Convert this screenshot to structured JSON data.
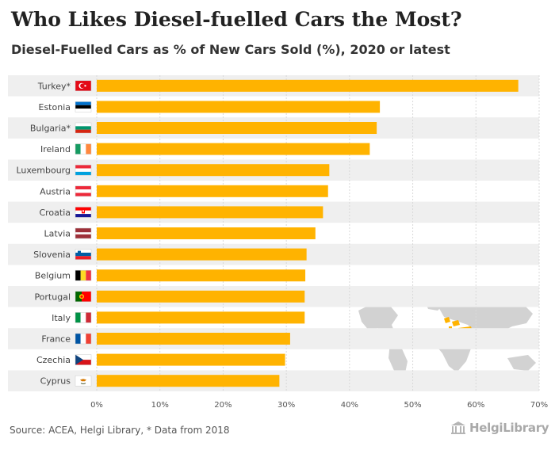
{
  "title": "Who Likes Diesel-fuelled Cars the Most?",
  "subtitle": "Diesel-Fuelled Cars as % of New Cars Sold (%), 2020 or latest",
  "source": "Source: ACEA, Helgi Library, * Data from 2018",
  "brand": "HelgiLibrary",
  "chart_data": {
    "type": "bar",
    "orientation": "horizontal",
    "categories": [
      "Turkey*",
      "Estonia",
      "Bulgaria*",
      "Ireland",
      "Luxembourg",
      "Austria",
      "Croatia",
      "Latvia",
      "Slovenia",
      "Belgium",
      "Portugal",
      "Italy",
      "France",
      "Czechia",
      "Cyprus"
    ],
    "values": [
      66.7,
      44.8,
      44.3,
      43.2,
      36.8,
      36.6,
      35.8,
      34.6,
      33.2,
      33.0,
      32.9,
      32.9,
      30.6,
      29.8,
      28.9
    ],
    "xlim": [
      0,
      70
    ],
    "ticks": [
      0,
      10,
      20,
      30,
      40,
      50,
      60,
      70
    ],
    "tick_labels": [
      "0%",
      "10%",
      "20%",
      "30%",
      "40%",
      "50%",
      "60%",
      "70%"
    ],
    "bar_color": "#ffb300",
    "band_color": "#efefef",
    "grid": true,
    "flags": [
      "flag-turkey",
      "flag-estonia",
      "flag-bulgaria",
      "flag-ireland",
      "flag-luxembourg",
      "flag-austria",
      "flag-croatia",
      "flag-latvia",
      "flag-slovenia",
      "flag-belgium",
      "flag-portugal",
      "flag-italy",
      "flag-france",
      "flag-czechia",
      "flag-cyprus"
    ]
  }
}
